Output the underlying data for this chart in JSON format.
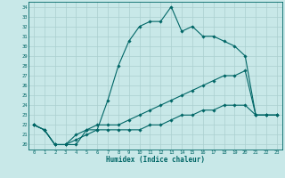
{
  "xlabel": "Humidex (Indice chaleur)",
  "bg_color": "#c8e8e8",
  "line_color": "#006666",
  "grid_color": "#aacfcf",
  "ylim": [
    19.5,
    34.5
  ],
  "xlim": [
    -0.5,
    23.5
  ],
  "yticks": [
    20,
    21,
    22,
    23,
    24,
    25,
    26,
    27,
    28,
    29,
    30,
    31,
    32,
    33,
    34
  ],
  "xticks": [
    0,
    1,
    2,
    3,
    4,
    5,
    6,
    7,
    8,
    9,
    10,
    11,
    12,
    13,
    14,
    15,
    16,
    17,
    18,
    19,
    20,
    21,
    22,
    23
  ],
  "series": [
    {
      "x": [
        0,
        1,
        2,
        3,
        4,
        5,
        6,
        7,
        8,
        9,
        10,
        11,
        12,
        13,
        14,
        15,
        16,
        17,
        18,
        19,
        20,
        21,
        22,
        23
      ],
      "y": [
        22,
        21.5,
        20,
        20,
        20,
        21.5,
        21.5,
        24.5,
        28,
        30.5,
        32,
        32.5,
        32.5,
        34,
        31.5,
        32,
        31,
        31,
        30.5,
        30,
        29,
        23,
        23,
        23
      ]
    },
    {
      "x": [
        0,
        1,
        2,
        3,
        4,
        5,
        6,
        7,
        8,
        9,
        10,
        11,
        12,
        13,
        14,
        15,
        16,
        17,
        18,
        19,
        20,
        21,
        22,
        23
      ],
      "y": [
        22,
        21.5,
        20,
        20,
        21,
        21.5,
        22,
        22,
        22,
        22.5,
        23,
        23.5,
        24,
        24.5,
        25,
        25.5,
        26,
        26.5,
        27,
        27,
        27.5,
        23,
        23,
        23
      ]
    },
    {
      "x": [
        0,
        1,
        2,
        3,
        4,
        5,
        6,
        7,
        8,
        9,
        10,
        11,
        12,
        13,
        14,
        15,
        16,
        17,
        18,
        19,
        20,
        21,
        22,
        23
      ],
      "y": [
        22,
        21.5,
        20,
        20,
        20.5,
        21,
        21.5,
        21.5,
        21.5,
        21.5,
        21.5,
        22,
        22,
        22.5,
        23,
        23,
        23.5,
        23.5,
        24,
        24,
        24,
        23,
        23,
        23
      ]
    }
  ]
}
